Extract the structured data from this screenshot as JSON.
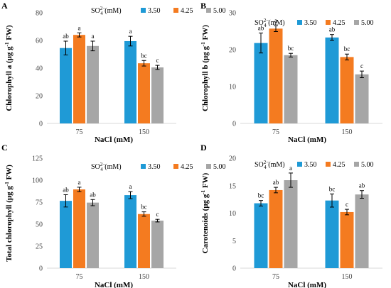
{
  "legend": {
    "prefix": "SO",
    "sub": "4",
    "sup": "2−",
    "unit": "(mM)",
    "levels": [
      "3.50",
      "4.25",
      "5.00"
    ]
  },
  "colors": {
    "s350": "#1f9ad6",
    "s425": "#f47b20",
    "s500": "#a6a6a6",
    "axis": "#d9d9d9",
    "text": "#000000"
  },
  "chart_data": [
    {
      "type": "bar",
      "panel": "A",
      "xlabel": "NaCl (mM)",
      "ylabel": {
        "main": "Chlorophyll a (μg g",
        "sup": "-1",
        "tail": " FW)"
      },
      "categories": [
        "75",
        "150"
      ],
      "ylim": [
        0,
        80
      ],
      "yticks": [
        0,
        20,
        40,
        60,
        80
      ],
      "series": [
        {
          "name": "3.50",
          "values": [
            54.5,
            59.5
          ],
          "errors": [
            5,
            3.5
          ],
          "letters": [
            "ab",
            "a"
          ]
        },
        {
          "name": "4.25",
          "values": [
            64,
            43.5
          ],
          "errors": [
            1.5,
            2
          ],
          "letters": [
            "a",
            "bc"
          ]
        },
        {
          "name": "5.00",
          "values": [
            56,
            40.5
          ],
          "errors": [
            3.5,
            1.5
          ],
          "letters": [
            "a",
            "c"
          ]
        }
      ]
    },
    {
      "type": "bar",
      "panel": "B",
      "xlabel": "NaCl (mM)",
      "ylabel": {
        "main": "Chlorophyll b (μg g",
        "sup": "-1",
        "tail": " FW)"
      },
      "categories": [
        "75",
        "150"
      ],
      "ylim": [
        0,
        30
      ],
      "yticks": [
        0,
        10,
        20,
        30
      ],
      "series": [
        {
          "name": "3.50",
          "values": [
            21.8,
            23.3
          ],
          "errors": [
            2.7,
            0.8
          ],
          "letters": [
            "ab",
            "ab"
          ]
        },
        {
          "name": "4.25",
          "values": [
            25.7,
            18
          ],
          "errors": [
            0.8,
            0.8
          ],
          "letters": [
            "a",
            "bc"
          ]
        },
        {
          "name": "5.00",
          "values": [
            18.5,
            13.3
          ],
          "errors": [
            0.5,
            0.9
          ],
          "letters": [
            "bc",
            "c"
          ]
        }
      ]
    },
    {
      "type": "bar",
      "panel": "C",
      "xlabel": "NaCl (mM)",
      "ylabel": {
        "main": "Total chlorophyll (μg g",
        "sup": "-1",
        "tail": " FW)"
      },
      "categories": [
        "75",
        "150"
      ],
      "ylim": [
        0,
        125
      ],
      "yticks": [
        0,
        25,
        50,
        75,
        100,
        125
      ],
      "series": [
        {
          "name": "3.50",
          "values": [
            76.5,
            83
          ],
          "errors": [
            7,
            4
          ],
          "letters": [
            "ab",
            "a"
          ]
        },
        {
          "name": "4.25",
          "values": [
            89.5,
            61.5
          ],
          "errors": [
            2.5,
            2.5
          ],
          "letters": [
            "a",
            "bc"
          ]
        },
        {
          "name": "5.00",
          "values": [
            74.5,
            54
          ],
          "errors": [
            3.5,
            1.5
          ],
          "letters": [
            "ab",
            "c"
          ]
        }
      ]
    },
    {
      "type": "bar",
      "panel": "D",
      "xlabel": "NaCl (mM)",
      "ylabel": {
        "main": "Carotenoids (μg g",
        "sup": "-1",
        "tail": " FW)"
      },
      "categories": [
        "75",
        "150"
      ],
      "ylim": [
        0,
        20
      ],
      "yticks": [
        0,
        5,
        10,
        15,
        20
      ],
      "series": [
        {
          "name": "3.50",
          "values": [
            11.8,
            12.3
          ],
          "errors": [
            0.5,
            1.2
          ],
          "letters": [
            "bc",
            "bc"
          ]
        },
        {
          "name": "4.25",
          "values": [
            14.2,
            10.2
          ],
          "errors": [
            0.5,
            0.5
          ],
          "letters": [
            "ab",
            "c"
          ]
        },
        {
          "name": "5.00",
          "values": [
            16,
            13.4
          ],
          "errors": [
            1.3,
            0.7
          ],
          "letters": [
            "a",
            "ab"
          ]
        }
      ]
    }
  ]
}
